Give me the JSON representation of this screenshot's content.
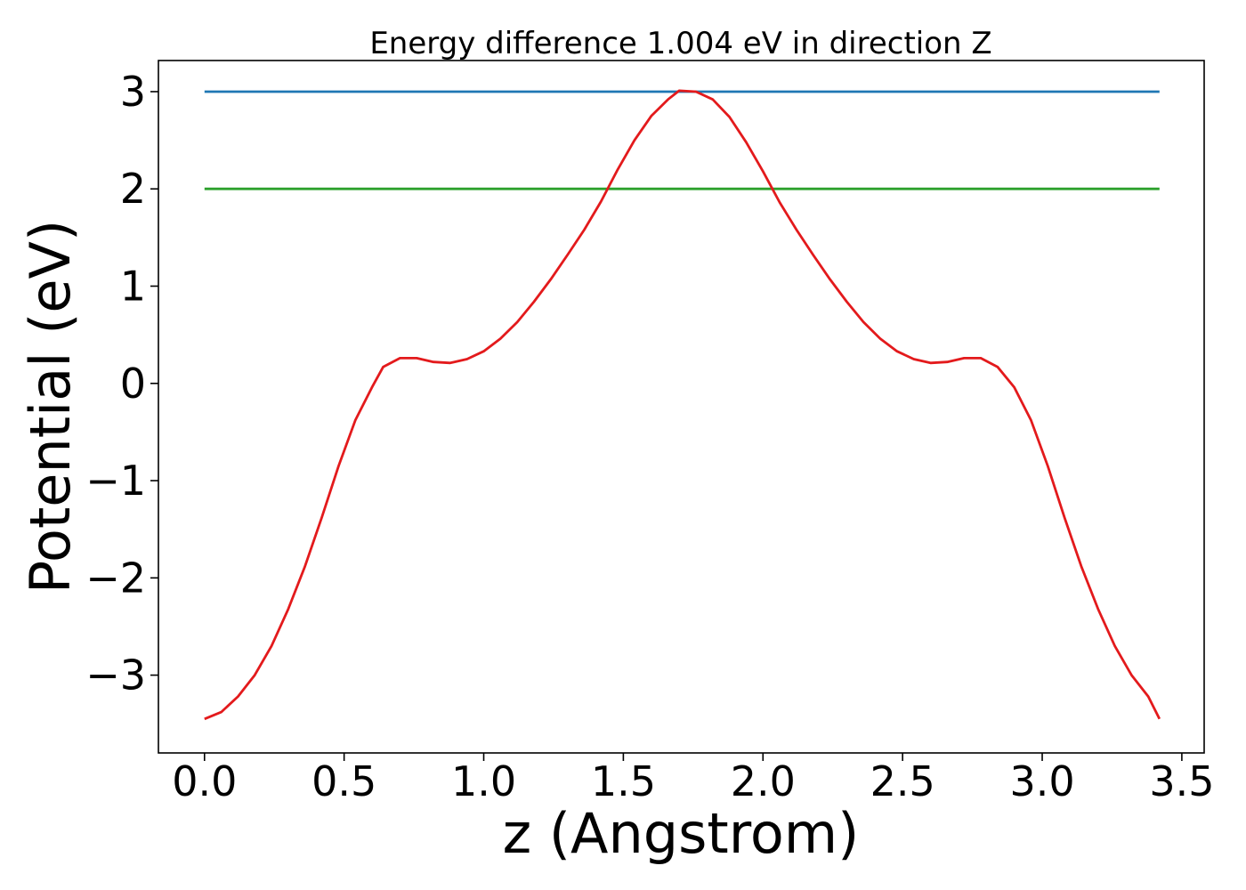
{
  "chart_data": {
    "type": "line",
    "title": "Energy difference 1.004 eV in direction Z",
    "xlabel": "z (Angstrom)",
    "ylabel": "Potential (eV)",
    "xlim": [
      -0.165,
      3.58
    ],
    "ylim": [
      -3.8,
      3.32
    ],
    "x_ticks": [
      0.0,
      0.5,
      1.0,
      1.5,
      2.0,
      2.5,
      3.0,
      3.5
    ],
    "x_tick_labels": [
      "0.0",
      "0.5",
      "1.0",
      "1.5",
      "2.0",
      "2.5",
      "3.0",
      "3.5"
    ],
    "y_ticks": [
      3,
      2,
      1,
      0,
      -1,
      -2,
      -3
    ],
    "y_tick_labels": [
      "3",
      "2",
      "1",
      "0",
      "−1",
      "−2",
      "−3"
    ],
    "grid": false,
    "series": [
      {
        "color": "#1f77b4",
        "x": [
          0.0,
          3.42
        ],
        "y": [
          3.0,
          3.0
        ]
      },
      {
        "color": "#2ca02c",
        "x": [
          0.0,
          3.42
        ],
        "y": [
          2.0,
          2.0
        ]
      },
      {
        "color": "#e31a1c",
        "x": [
          0.0,
          0.06,
          0.12,
          0.18,
          0.24,
          0.3,
          0.36,
          0.42,
          0.48,
          0.54,
          0.6,
          0.64,
          0.7,
          0.76,
          0.82,
          0.88,
          0.94,
          1.0,
          1.06,
          1.12,
          1.18,
          1.24,
          1.3,
          1.36,
          1.42,
          1.48,
          1.54,
          1.6,
          1.66,
          1.7,
          1.76,
          1.82,
          1.88,
          1.94,
          2.0,
          2.06,
          2.12,
          2.18,
          2.24,
          2.3,
          2.36,
          2.42,
          2.48,
          2.54,
          2.6,
          2.66,
          2.72,
          2.78,
          2.84,
          2.9,
          2.96,
          3.02,
          3.08,
          3.14,
          3.2,
          3.26,
          3.32,
          3.38,
          3.42
        ],
        "y": [
          -3.45,
          -3.38,
          -3.22,
          -3.0,
          -2.7,
          -2.32,
          -1.88,
          -1.38,
          -0.85,
          -0.38,
          -0.04,
          0.17,
          0.26,
          0.26,
          0.22,
          0.21,
          0.25,
          0.33,
          0.46,
          0.63,
          0.84,
          1.07,
          1.32,
          1.58,
          1.87,
          2.2,
          2.5,
          2.75,
          2.92,
          3.01,
          3.0,
          2.92,
          2.74,
          2.48,
          2.18,
          1.86,
          1.58,
          1.32,
          1.07,
          0.84,
          0.63,
          0.46,
          0.33,
          0.25,
          0.21,
          0.22,
          0.26,
          0.26,
          0.17,
          -0.04,
          -0.38,
          -0.85,
          -1.38,
          -1.88,
          -2.32,
          -2.7,
          -3.0,
          -3.22,
          -3.45
        ]
      }
    ]
  }
}
